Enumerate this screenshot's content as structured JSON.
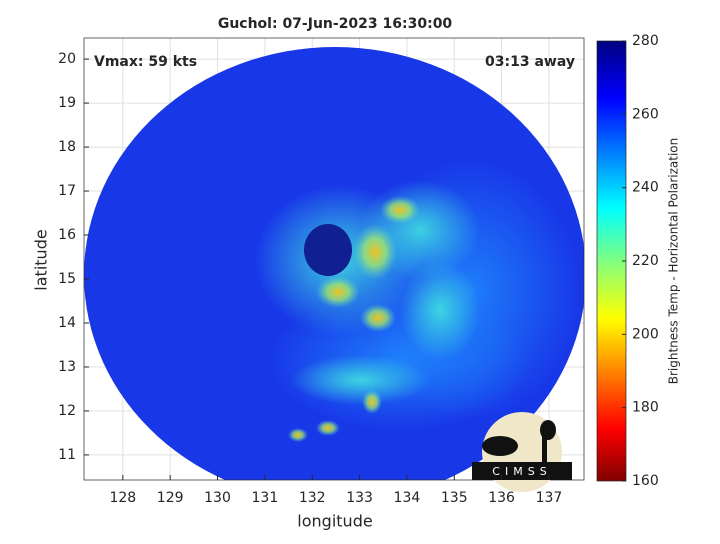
{
  "chart_data": {
    "type": "image",
    "title": "Guchol: 07-Jun-2023 16:30:00",
    "xlabel": "longitude",
    "ylabel": "latitude",
    "annotations": [
      "Vmax: 59 kts",
      "03:13 away"
    ],
    "logo": "CIMSS",
    "xlim": [
      127.18,
      137.74
    ],
    "xticks": [
      128,
      129,
      130,
      131,
      132,
      133,
      134,
      135,
      136,
      137
    ],
    "ylim": [
      10.43,
      20.48
    ],
    "yticks": [
      11,
      12,
      13,
      14,
      15,
      16,
      17,
      18,
      19,
      20
    ],
    "grid": true,
    "colorbar": {
      "label": "Brightness Temp - Horizontal Polarization",
      "lim": [
        160,
        280
      ],
      "ticks": [
        160,
        180,
        200,
        220,
        240,
        260,
        280
      ]
    }
  }
}
